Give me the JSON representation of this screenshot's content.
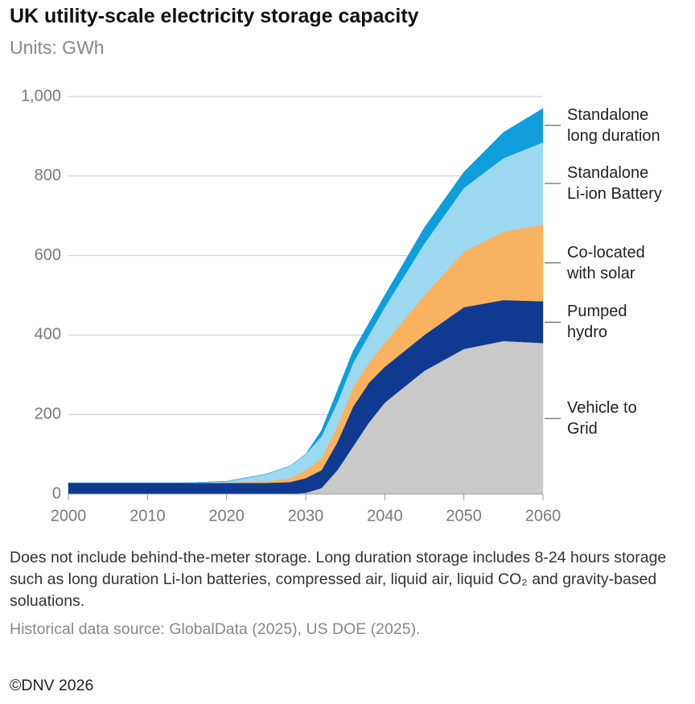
{
  "chart_data": {
    "type": "stacked-area",
    "title": "UK utility-scale electricity storage capacity",
    "subtitle": "Units: GWh",
    "x": [
      2000,
      2005,
      2010,
      2015,
      2020,
      2025,
      2028,
      2030,
      2032,
      2034,
      2036,
      2038,
      2040,
      2045,
      2050,
      2055,
      2060
    ],
    "series": [
      {
        "name": "Vehicle to\nGrid",
        "color": "#c9c9c9",
        "values": [
          0,
          0,
          0,
          0,
          0,
          0,
          0,
          3,
          15,
          60,
          120,
          180,
          230,
          310,
          365,
          385,
          380
        ]
      },
      {
        "name": "Pumped\nhydro",
        "color": "#0f3a8f",
        "values": [
          28,
          28,
          28,
          28,
          28,
          28,
          30,
          37,
          45,
          70,
          100,
          100,
          90,
          90,
          105,
          103,
          105
        ]
      },
      {
        "name": "Co-located\nwith solar",
        "color": "#f9b260",
        "values": [
          0,
          0,
          0,
          0,
          1,
          4,
          10,
          20,
          30,
          40,
          50,
          50,
          60,
          100,
          140,
          172,
          193
        ]
      },
      {
        "name": "Standalone\nLi-ion Battery",
        "color": "#9dd8f1",
        "values": [
          0,
          0,
          0,
          0,
          3,
          18,
          30,
          40,
          55,
          60,
          60,
          70,
          90,
          130,
          160,
          185,
          207
        ]
      },
      {
        "name": "Standalone\nlong duration",
        "color": "#0f9edb",
        "values": [
          0,
          0,
          0,
          0,
          0,
          0,
          0,
          0,
          15,
          30,
          30,
          30,
          30,
          40,
          40,
          65,
          85
        ]
      }
    ],
    "xlim": [
      2000,
      2060
    ],
    "xticks": [
      2000,
      2010,
      2020,
      2030,
      2040,
      2050,
      2060
    ],
    "ylim": [
      0,
      1000
    ],
    "yticks": [
      0,
      200,
      400,
      600,
      800,
      {
        "value": 1000,
        "label": "1,000"
      }
    ],
    "grid": true,
    "note": "Does not include behind-the-meter storage. Long duration storage includes 8-24 hours storage such as long duration Li-Ion batteries, compressed air, liquid air, liquid CO₂ and gravity-based soluations.",
    "source": "Historical data source: GlobalData (2025), US DOE (2025).",
    "copyright": "©DNV 2026"
  }
}
